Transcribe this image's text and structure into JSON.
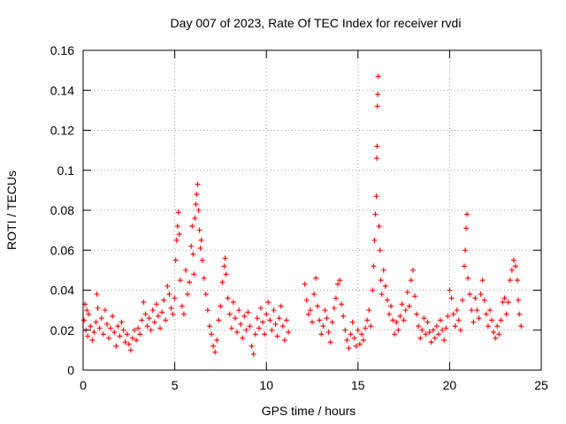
{
  "chart_data": {
    "type": "scatter",
    "title": "Day 007 of 2023, Rate Of TEC Index for receiver rvdi",
    "xlabel": "GPS time / hours",
    "ylabel": "ROTI / TECUs",
    "xlim": [
      0,
      25
    ],
    "ylim": [
      0,
      0.16
    ],
    "x_ticks": [
      "0",
      "5",
      "10",
      "15",
      "20",
      "25"
    ],
    "y_ticks": [
      "0",
      "0.02",
      "0.04",
      "0.06",
      "0.08",
      "0.1",
      "0.12",
      "0.14",
      "0.16"
    ],
    "grid": true,
    "legend": "none",
    "marker": "+",
    "color": "#ff0000",
    "series": [
      {
        "values": [
          [
            0.05,
            0.025
          ],
          [
            0.1,
            0.033
          ],
          [
            0.15,
            0.02
          ],
          [
            0.2,
            0.03
          ],
          [
            0.25,
            0.017
          ],
          [
            0.3,
            0.028
          ],
          [
            0.4,
            0.022
          ],
          [
            0.5,
            0.015
          ],
          [
            0.6,
            0.019
          ],
          [
            0.7,
            0.024
          ],
          [
            0.75,
            0.038
          ],
          [
            0.8,
            0.031
          ],
          [
            0.9,
            0.021
          ],
          [
            1.0,
            0.026
          ],
          [
            1.1,
            0.018
          ],
          [
            1.2,
            0.03
          ],
          [
            1.3,
            0.023
          ],
          [
            1.4,
            0.016
          ],
          [
            1.5,
            0.021
          ],
          [
            1.6,
            0.027
          ],
          [
            1.7,
            0.019
          ],
          [
            1.8,
            0.012
          ],
          [
            1.9,
            0.022
          ],
          [
            2.0,
            0.017
          ],
          [
            2.1,
            0.024
          ],
          [
            2.2,
            0.02
          ],
          [
            2.3,
            0.014
          ],
          [
            2.4,
            0.018
          ],
          [
            2.5,
            0.013
          ],
          [
            2.6,
            0.01
          ],
          [
            2.7,
            0.016
          ],
          [
            2.8,
            0.02
          ],
          [
            2.9,
            0.015
          ],
          [
            3.0,
            0.021
          ],
          [
            3.1,
            0.018
          ],
          [
            3.2,
            0.025
          ],
          [
            3.3,
            0.034
          ],
          [
            3.4,
            0.028
          ],
          [
            3.5,
            0.022
          ],
          [
            3.6,
            0.026
          ],
          [
            3.7,
            0.02
          ],
          [
            3.8,
            0.03
          ],
          [
            3.9,
            0.024
          ],
          [
            4.0,
            0.033
          ],
          [
            4.1,
            0.027
          ],
          [
            4.2,
            0.021
          ],
          [
            4.3,
            0.029
          ],
          [
            4.4,
            0.035
          ],
          [
            4.5,
            0.025
          ],
          [
            4.6,
            0.042
          ],
          [
            4.7,
            0.038
          ],
          [
            4.8,
            0.031
          ],
          [
            4.9,
            0.028
          ],
          [
            5.0,
            0.036
          ],
          [
            5.05,
            0.055
          ],
          [
            5.1,
            0.065
          ],
          [
            5.15,
            0.072
          ],
          [
            5.2,
            0.079
          ],
          [
            5.25,
            0.068
          ],
          [
            5.3,
            0.045
          ],
          [
            5.4,
            0.032
          ],
          [
            5.5,
            0.028
          ],
          [
            5.6,
            0.05
          ],
          [
            5.7,
            0.038
          ],
          [
            5.8,
            0.044
          ],
          [
            5.9,
            0.062
          ],
          [
            5.95,
            0.072
          ],
          [
            6.0,
            0.058
          ],
          [
            6.05,
            0.048
          ],
          [
            6.1,
            0.076
          ],
          [
            6.15,
            0.083
          ],
          [
            6.2,
            0.088
          ],
          [
            6.25,
            0.093
          ],
          [
            6.3,
            0.08
          ],
          [
            6.35,
            0.07
          ],
          [
            6.4,
            0.061
          ],
          [
            6.45,
            0.065
          ],
          [
            6.5,
            0.055
          ],
          [
            6.6,
            0.046
          ],
          [
            6.7,
            0.038
          ],
          [
            6.8,
            0.03
          ],
          [
            6.9,
            0.022
          ],
          [
            7.0,
            0.018
          ],
          [
            7.1,
            0.012
          ],
          [
            7.2,
            0.009
          ],
          [
            7.3,
            0.015
          ],
          [
            7.4,
            0.025
          ],
          [
            7.5,
            0.032
          ],
          [
            7.6,
            0.044
          ],
          [
            7.7,
            0.052
          ],
          [
            7.75,
            0.056
          ],
          [
            7.8,
            0.048
          ],
          [
            7.9,
            0.036
          ],
          [
            8.0,
            0.028
          ],
          [
            8.1,
            0.021
          ],
          [
            8.2,
            0.034
          ],
          [
            8.3,
            0.026
          ],
          [
            8.4,
            0.019
          ],
          [
            8.5,
            0.03
          ],
          [
            8.6,
            0.023
          ],
          [
            8.7,
            0.016
          ],
          [
            8.8,
            0.027
          ],
          [
            8.9,
            0.02
          ],
          [
            9.0,
            0.029
          ],
          [
            9.1,
            0.022
          ],
          [
            9.2,
            0.012
          ],
          [
            9.3,
            0.008
          ],
          [
            9.4,
            0.018
          ],
          [
            9.5,
            0.026
          ],
          [
            9.6,
            0.021
          ],
          [
            9.7,
            0.031
          ],
          [
            9.8,
            0.024
          ],
          [
            9.9,
            0.018
          ],
          [
            10.0,
            0.028
          ],
          [
            10.1,
            0.034
          ],
          [
            10.2,
            0.025
          ],
          [
            10.3,
            0.02
          ],
          [
            10.4,
            0.03
          ],
          [
            10.5,
            0.023
          ],
          [
            10.6,
            0.017
          ],
          [
            10.7,
            0.026
          ],
          [
            10.8,
            0.032
          ],
          [
            10.9,
            0.022
          ],
          [
            11.0,
            0.015
          ],
          [
            11.1,
            0.025
          ],
          [
            11.2,
            0.019
          ],
          [
            12.1,
            0.043
          ],
          [
            12.2,
            0.035
          ],
          [
            12.3,
            0.028
          ],
          [
            12.4,
            0.03
          ],
          [
            12.5,
            0.024
          ],
          [
            12.6,
            0.038
          ],
          [
            12.7,
            0.046
          ],
          [
            12.8,
            0.032
          ],
          [
            12.9,
            0.025
          ],
          [
            13.0,
            0.018
          ],
          [
            13.1,
            0.022
          ],
          [
            13.2,
            0.03
          ],
          [
            13.3,
            0.026
          ],
          [
            13.4,
            0.019
          ],
          [
            13.5,
            0.014
          ],
          [
            13.6,
            0.024
          ],
          [
            13.7,
            0.031
          ],
          [
            13.8,
            0.036
          ],
          [
            13.9,
            0.043
          ],
          [
            14.0,
            0.045
          ],
          [
            14.1,
            0.033
          ],
          [
            14.2,
            0.027
          ],
          [
            14.3,
            0.02
          ],
          [
            14.4,
            0.015
          ],
          [
            14.5,
            0.011
          ],
          [
            14.6,
            0.018
          ],
          [
            14.7,
            0.024
          ],
          [
            14.8,
            0.016
          ],
          [
            14.9,
            0.012
          ],
          [
            15.0,
            0.02
          ],
          [
            15.1,
            0.013
          ],
          [
            15.2,
            0.018
          ],
          [
            15.3,
            0.015
          ],
          [
            15.4,
            0.021
          ],
          [
            15.5,
            0.025
          ],
          [
            15.6,
            0.03
          ],
          [
            15.7,
            0.022
          ],
          [
            15.8,
            0.04
          ],
          [
            15.85,
            0.052
          ],
          [
            15.9,
            0.065
          ],
          [
            15.95,
            0.078
          ],
          [
            16.0,
            0.087
          ],
          [
            16.02,
            0.106
          ],
          [
            16.04,
            0.112
          ],
          [
            16.06,
            0.132
          ],
          [
            16.08,
            0.138
          ],
          [
            16.1,
            0.147
          ],
          [
            16.15,
            0.072
          ],
          [
            16.2,
            0.06
          ],
          [
            16.25,
            0.045
          ],
          [
            16.3,
            0.038
          ],
          [
            16.4,
            0.05
          ],
          [
            16.5,
            0.042
          ],
          [
            16.6,
            0.035
          ],
          [
            16.7,
            0.028
          ],
          [
            16.8,
            0.032
          ],
          [
            16.9,
            0.025
          ],
          [
            17.0,
            0.018
          ],
          [
            17.1,
            0.024
          ],
          [
            17.2,
            0.02
          ],
          [
            17.3,
            0.027
          ],
          [
            17.4,
            0.033
          ],
          [
            17.5,
            0.025
          ],
          [
            17.6,
            0.03
          ],
          [
            17.7,
            0.039
          ],
          [
            17.8,
            0.032
          ],
          [
            17.9,
            0.045
          ],
          [
            18.0,
            0.05
          ],
          [
            18.1,
            0.037
          ],
          [
            18.2,
            0.028
          ],
          [
            18.3,
            0.022
          ],
          [
            18.4,
            0.016
          ],
          [
            18.5,
            0.02
          ],
          [
            18.6,
            0.026
          ],
          [
            18.7,
            0.018
          ],
          [
            18.8,
            0.024
          ],
          [
            18.9,
            0.019
          ],
          [
            19.0,
            0.014
          ],
          [
            19.1,
            0.02
          ],
          [
            19.2,
            0.016
          ],
          [
            19.3,
            0.022
          ],
          [
            19.4,
            0.018
          ],
          [
            19.5,
            0.025
          ],
          [
            19.6,
            0.02
          ],
          [
            19.7,
            0.015
          ],
          [
            19.8,
            0.021
          ],
          [
            19.9,
            0.027
          ],
          [
            20.0,
            0.04
          ],
          [
            20.1,
            0.036
          ],
          [
            20.2,
            0.028
          ],
          [
            20.3,
            0.022
          ],
          [
            20.4,
            0.03
          ],
          [
            20.5,
            0.025
          ],
          [
            20.6,
            0.02
          ],
          [
            20.7,
            0.035
          ],
          [
            20.8,
            0.052
          ],
          [
            20.85,
            0.06
          ],
          [
            20.9,
            0.071
          ],
          [
            20.95,
            0.078
          ],
          [
            21.0,
            0.046
          ],
          [
            21.1,
            0.038
          ],
          [
            21.2,
            0.03
          ],
          [
            21.3,
            0.024
          ],
          [
            21.4,
            0.036
          ],
          [
            21.5,
            0.03
          ],
          [
            21.6,
            0.026
          ],
          [
            21.7,
            0.038
          ],
          [
            21.8,
            0.045
          ],
          [
            21.9,
            0.035
          ],
          [
            22.0,
            0.028
          ],
          [
            22.1,
            0.022
          ],
          [
            22.2,
            0.03
          ],
          [
            22.3,
            0.025
          ],
          [
            22.4,
            0.019
          ],
          [
            22.5,
            0.016
          ],
          [
            22.6,
            0.022
          ],
          [
            22.7,
            0.018
          ],
          [
            22.8,
            0.025
          ],
          [
            22.9,
            0.034
          ],
          [
            23.0,
            0.036
          ],
          [
            23.1,
            0.028
          ],
          [
            23.2,
            0.034
          ],
          [
            23.3,
            0.045
          ],
          [
            23.4,
            0.05
          ],
          [
            23.5,
            0.055
          ],
          [
            23.6,
            0.052
          ],
          [
            23.7,
            0.045
          ],
          [
            23.75,
            0.035
          ],
          [
            23.8,
            0.028
          ],
          [
            23.9,
            0.022
          ]
        ]
      }
    ]
  }
}
